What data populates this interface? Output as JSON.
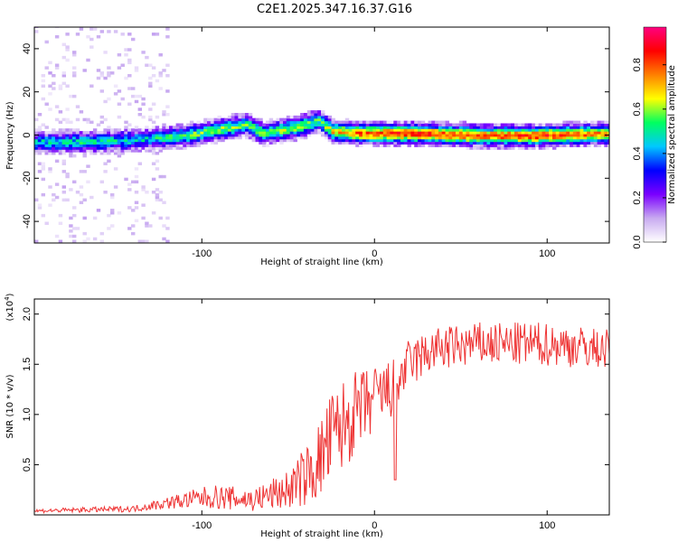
{
  "title": "C2E1.2025.347.16.37.G16",
  "chart_data": [
    {
      "type": "heatmap",
      "name": "spectrogram",
      "xlabel": "Height of straight line (km)",
      "ylabel": "Frequency (Hz)",
      "xlim": [
        -197,
        136
      ],
      "ylim": [
        -50,
        50
      ],
      "xticks": [
        {
          "value": -100,
          "label": "-100"
        },
        {
          "value": 0,
          "label": "0"
        },
        {
          "value": 100,
          "label": "100"
        }
      ],
      "yticks": [
        {
          "value": -40,
          "label": "-40"
        },
        {
          "value": -20,
          "label": "-20"
        },
        {
          "value": 0,
          "label": "0"
        },
        {
          "value": 20,
          "label": "20"
        },
        {
          "value": 40,
          "label": "40"
        }
      ],
      "ridge": [
        {
          "x": -197,
          "f": -4,
          "amp": 0.45
        },
        {
          "x": -170,
          "f": -4,
          "amp": 0.5
        },
        {
          "x": -140,
          "f": -3,
          "amp": 0.45
        },
        {
          "x": -110,
          "f": -1,
          "amp": 0.55
        },
        {
          "x": -90,
          "f": 2,
          "amp": 0.6
        },
        {
          "x": -75,
          "f": 4,
          "amp": 0.55
        },
        {
          "x": -65,
          "f": 0,
          "amp": 0.6
        },
        {
          "x": -45,
          "f": 3,
          "amp": 0.6
        },
        {
          "x": -33,
          "f": 6,
          "amp": 0.55
        },
        {
          "x": -25,
          "f": 1,
          "amp": 0.7
        },
        {
          "x": -10,
          "f": 0,
          "amp": 0.8
        },
        {
          "x": 20,
          "f": 0,
          "amp": 0.85
        },
        {
          "x": 60,
          "f": -1,
          "amp": 0.8
        },
        {
          "x": 95,
          "f": -1,
          "amp": 0.85
        },
        {
          "x": 136,
          "f": 0,
          "amp": 0.75
        }
      ],
      "colorbar": {
        "label": "Normalized spectral amplitude",
        "range": [
          0,
          0.97
        ],
        "ticks": [
          {
            "value": 0.0,
            "label": "0.0"
          },
          {
            "value": 0.2,
            "label": "0.2"
          },
          {
            "value": 0.4,
            "label": "0.4"
          },
          {
            "value": 0.6,
            "label": "0.6"
          },
          {
            "value": 0.8,
            "label": "0.8"
          }
        ],
        "stops": [
          "#ffffff",
          "#c8aaf0",
          "#7a00ff",
          "#0000ff",
          "#00c8ff",
          "#00ff60",
          "#ffff00",
          "#ff8000",
          "#ff0000",
          "#ff0080"
        ]
      }
    },
    {
      "type": "line",
      "name": "snr",
      "xlabel": "Height of straight line (km)",
      "ylabel": "SNR (10 * v/v)",
      "scale_label": "(x10",
      "scale_exponent": "4",
      "scale_close": ")",
      "xlim": [
        -197,
        136
      ],
      "ylim": [
        0,
        21500
      ],
      "xticks": [
        {
          "value": -100,
          "label": "-100"
        },
        {
          "value": 0,
          "label": "0"
        },
        {
          "value": 100,
          "label": "100"
        }
      ],
      "yticks": [
        {
          "value": 5000,
          "label": "0.5"
        },
        {
          "value": 10000,
          "label": "1.0"
        },
        {
          "value": 15000,
          "label": "1.5"
        },
        {
          "value": 20000,
          "label": "2.0"
        }
      ],
      "color": "#ee3333",
      "trend": [
        {
          "x": -197,
          "y": 400,
          "noise": 200
        },
        {
          "x": -140,
          "y": 600,
          "noise": 300
        },
        {
          "x": -120,
          "y": 1200,
          "noise": 600
        },
        {
          "x": -95,
          "y": 1800,
          "noise": 1200
        },
        {
          "x": -70,
          "y": 1500,
          "noise": 1200
        },
        {
          "x": -50,
          "y": 2500,
          "noise": 2000
        },
        {
          "x": -35,
          "y": 4500,
          "noise": 3500
        },
        {
          "x": -25,
          "y": 7500,
          "noise": 5000
        },
        {
          "x": -15,
          "y": 9500,
          "noise": 4500
        },
        {
          "x": 0,
          "y": 11500,
          "noise": 3500
        },
        {
          "x": 10,
          "y": 12500,
          "noise": 3000
        },
        {
          "x": 20,
          "y": 15000,
          "noise": 2500
        },
        {
          "x": 35,
          "y": 16500,
          "noise": 2200
        },
        {
          "x": 60,
          "y": 17000,
          "noise": 2200
        },
        {
          "x": 100,
          "y": 17000,
          "noise": 2200
        },
        {
          "x": 136,
          "y": 16500,
          "noise": 2000
        }
      ],
      "dip": {
        "x": 12,
        "y": 3500
      }
    }
  ]
}
